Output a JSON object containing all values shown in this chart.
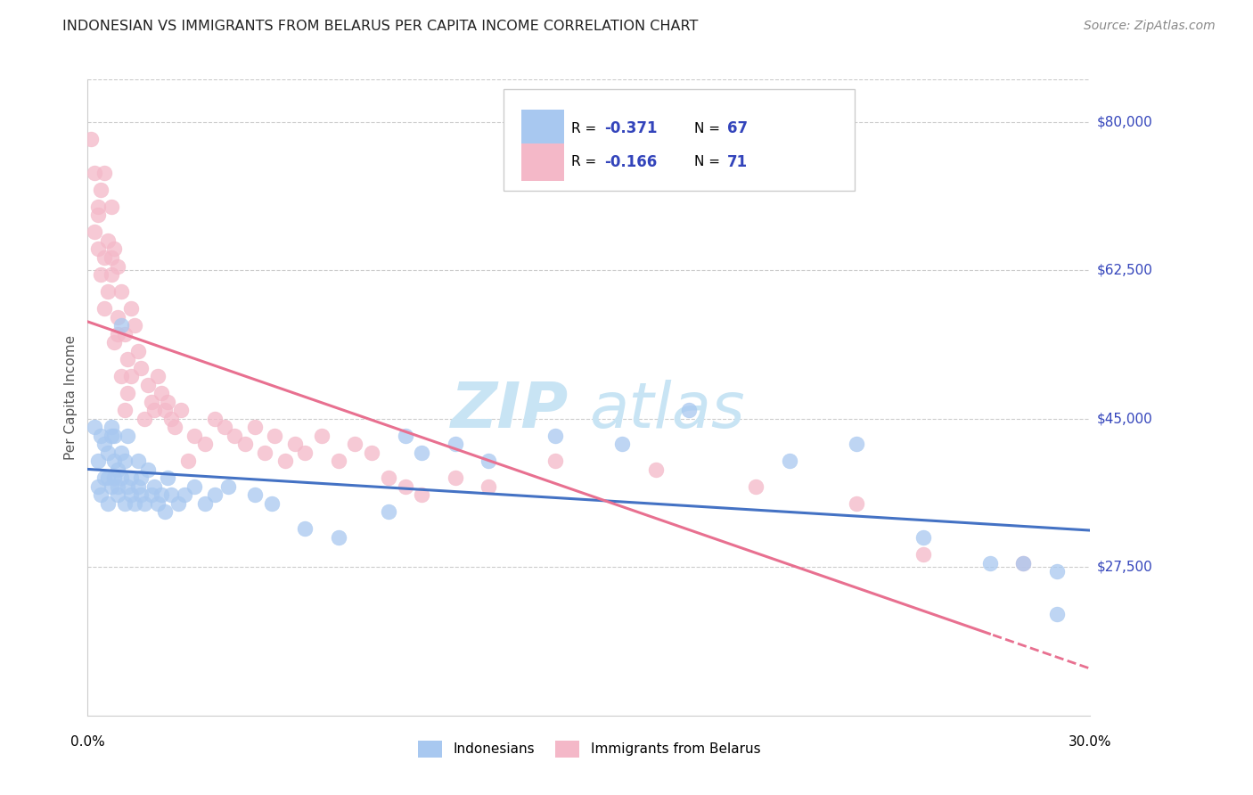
{
  "title": "INDONESIAN VS IMMIGRANTS FROM BELARUS PER CAPITA INCOME CORRELATION CHART",
  "source": "Source: ZipAtlas.com",
  "ylabel": "Per Capita Income",
  "yaxis_labels": [
    "$80,000",
    "$62,500",
    "$45,000",
    "$27,500"
  ],
  "yaxis_values": [
    80000,
    62500,
    45000,
    27500
  ],
  "ylim": [
    10000,
    85000
  ],
  "xlim": [
    0.0,
    0.3
  ],
  "r1": "-0.371",
  "n1": "67",
  "r2": "-0.166",
  "n2": "71",
  "color_blue": "#A8C8F0",
  "color_pink": "#F4B8C8",
  "color_blue_line": "#4472C4",
  "color_pink_line": "#E87090",
  "color_rv": "#3344BB",
  "watermark_color": "#D8EEF8",
  "indonesian_x": [
    0.002,
    0.003,
    0.003,
    0.004,
    0.004,
    0.005,
    0.005,
    0.006,
    0.006,
    0.006,
    0.007,
    0.007,
    0.007,
    0.008,
    0.008,
    0.008,
    0.009,
    0.009,
    0.009,
    0.01,
    0.01,
    0.01,
    0.011,
    0.011,
    0.012,
    0.012,
    0.013,
    0.013,
    0.014,
    0.015,
    0.015,
    0.016,
    0.016,
    0.017,
    0.018,
    0.019,
    0.02,
    0.021,
    0.022,
    0.023,
    0.024,
    0.025,
    0.027,
    0.029,
    0.032,
    0.035,
    0.038,
    0.042,
    0.05,
    0.055,
    0.065,
    0.075,
    0.09,
    0.1,
    0.12,
    0.14,
    0.16,
    0.18,
    0.21,
    0.23,
    0.25,
    0.27,
    0.28,
    0.29,
    0.29,
    0.095,
    0.11
  ],
  "indonesian_y": [
    44000,
    40000,
    37000,
    43000,
    36000,
    42000,
    38000,
    41000,
    38000,
    35000,
    44000,
    37000,
    43000,
    40000,
    38000,
    43000,
    36000,
    39000,
    37000,
    56000,
    38000,
    41000,
    35000,
    40000,
    37000,
    43000,
    36000,
    38000,
    35000,
    40000,
    37000,
    36000,
    38000,
    35000,
    39000,
    36000,
    37000,
    35000,
    36000,
    34000,
    38000,
    36000,
    35000,
    36000,
    37000,
    35000,
    36000,
    37000,
    36000,
    35000,
    32000,
    31000,
    34000,
    41000,
    40000,
    43000,
    42000,
    46000,
    40000,
    42000,
    31000,
    28000,
    28000,
    27000,
    22000,
    43000,
    42000
  ],
  "belarus_x": [
    0.001,
    0.002,
    0.002,
    0.003,
    0.003,
    0.003,
    0.004,
    0.004,
    0.005,
    0.005,
    0.005,
    0.006,
    0.006,
    0.007,
    0.007,
    0.007,
    0.008,
    0.008,
    0.009,
    0.009,
    0.009,
    0.01,
    0.01,
    0.011,
    0.011,
    0.012,
    0.012,
    0.013,
    0.013,
    0.014,
    0.015,
    0.016,
    0.017,
    0.018,
    0.019,
    0.02,
    0.021,
    0.022,
    0.023,
    0.024,
    0.025,
    0.026,
    0.028,
    0.03,
    0.032,
    0.035,
    0.038,
    0.041,
    0.044,
    0.047,
    0.05,
    0.053,
    0.056,
    0.059,
    0.062,
    0.065,
    0.07,
    0.075,
    0.08,
    0.085,
    0.09,
    0.095,
    0.1,
    0.11,
    0.12,
    0.14,
    0.17,
    0.2,
    0.23,
    0.25,
    0.28
  ],
  "belarus_y": [
    78000,
    74000,
    67000,
    70000,
    65000,
    69000,
    62000,
    72000,
    58000,
    64000,
    74000,
    60000,
    66000,
    64000,
    70000,
    62000,
    54000,
    65000,
    55000,
    63000,
    57000,
    50000,
    60000,
    46000,
    55000,
    52000,
    48000,
    58000,
    50000,
    56000,
    53000,
    51000,
    45000,
    49000,
    47000,
    46000,
    50000,
    48000,
    46000,
    47000,
    45000,
    44000,
    46000,
    40000,
    43000,
    42000,
    45000,
    44000,
    43000,
    42000,
    44000,
    41000,
    43000,
    40000,
    42000,
    41000,
    43000,
    40000,
    42000,
    41000,
    38000,
    37000,
    36000,
    38000,
    37000,
    40000,
    39000,
    37000,
    35000,
    29000,
    28000
  ]
}
